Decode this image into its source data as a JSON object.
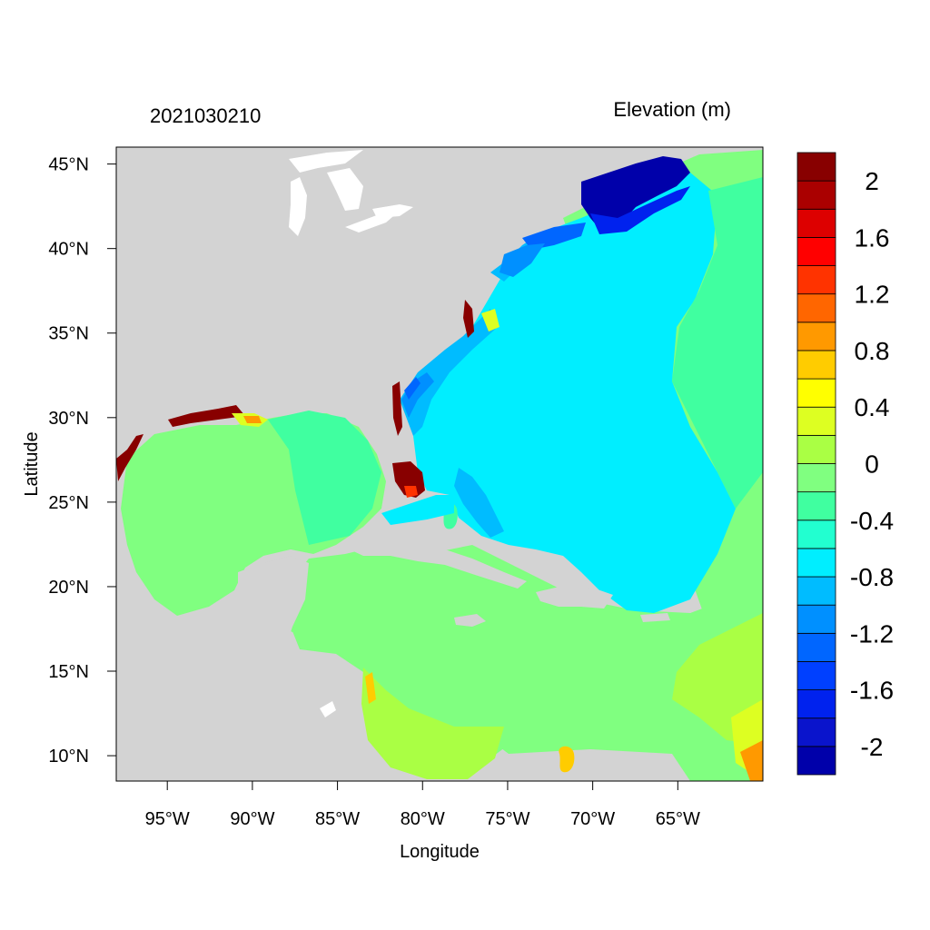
{
  "map": {
    "date_label": "2021030210",
    "variable_label": "Elevation (m)",
    "xlabel": "Longitude",
    "ylabel": "Latitude",
    "lon_range": [
      -98,
      -60
    ],
    "lat_range": [
      8.5,
      46
    ],
    "lon_ticks": [
      {
        "value": -95,
        "label": "95°W"
      },
      {
        "value": -90,
        "label": "90°W"
      },
      {
        "value": -85,
        "label": "85°W"
      },
      {
        "value": -80,
        "label": "80°W"
      },
      {
        "value": -75,
        "label": "75°W"
      },
      {
        "value": -70,
        "label": "70°W"
      },
      {
        "value": -65,
        "label": "65°W"
      }
    ],
    "lat_ticks": [
      {
        "value": 45,
        "label": "45°N"
      },
      {
        "value": 40,
        "label": "40°N"
      },
      {
        "value": 35,
        "label": "35°N"
      },
      {
        "value": 30,
        "label": "30°N"
      },
      {
        "value": 25,
        "label": "25°N"
      },
      {
        "value": 20,
        "label": "20°N"
      },
      {
        "value": 15,
        "label": "15°N"
      },
      {
        "value": 10,
        "label": "10°N"
      }
    ],
    "colors": {
      "land": "#d3d3d3",
      "lakes": "#ffffff"
    }
  },
  "colorbar": {
    "levels": [
      {
        "color": "#0000aa"
      },
      {
        "color": "#0a14cc"
      },
      {
        "color": "#0022ee"
      },
      {
        "color": "#0040ff"
      },
      {
        "color": "#0066ff"
      },
      {
        "color": "#0090ff"
      },
      {
        "color": "#00bcff"
      },
      {
        "color": "#00eeff"
      },
      {
        "color": "#22ffd0"
      },
      {
        "color": "#40ffa0"
      },
      {
        "color": "#80ff80"
      },
      {
        "color": "#aaff44"
      },
      {
        "color": "#ddff22"
      },
      {
        "color": "#ffff00"
      },
      {
        "color": "#ffcc00"
      },
      {
        "color": "#ff9900"
      },
      {
        "color": "#ff6600"
      },
      {
        "color": "#ff3300"
      },
      {
        "color": "#ff0000"
      },
      {
        "color": "#dd0000"
      },
      {
        "color": "#aa0000"
      },
      {
        "color": "#880000"
      }
    ],
    "labels": [
      "2",
      "1.6",
      "1.2",
      "0.8",
      "0.4",
      "0",
      "-0.4",
      "-0.8",
      "-1.2",
      "-1.6",
      "-2"
    ]
  }
}
